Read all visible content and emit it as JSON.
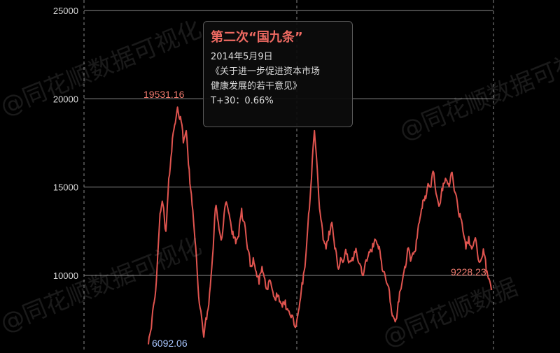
{
  "colors": {
    "line": "#e0544f",
    "grid": "#8a8a8a",
    "peak_label": "#f07a6e",
    "trough_label": "#a9c6ff"
  },
  "watermarks": [
    "@同花顺数据可视化",
    "@同花顺数据可视化",
    "@同花顺数据可视化",
    "@同花顺数据"
  ],
  "tooltip": {
    "title": "第二次“国九条”",
    "date": "2014年5月9日",
    "doc_line1": "《关于进一步促进资本市场",
    "doc_line2": "健康发展的若干意见》",
    "t30": "T+30：0.66%"
  },
  "chart_data": {
    "type": "line",
    "title": "",
    "xlabel": "",
    "ylabel": "",
    "ylim": [
      5800,
      25600
    ],
    "yticks": [
      10000,
      15000,
      20000,
      25000
    ],
    "grid": true,
    "annotations": [
      {
        "text": "19531.16",
        "kind": "peak"
      },
      {
        "text": "6092.06",
        "kind": "trough"
      },
      {
        "text": "9228.23",
        "kind": "last"
      }
    ],
    "series": [
      {
        "values": [
          6092,
          7000,
          8500,
          10500,
          13500,
          14000,
          12500,
          15500,
          17000,
          18500,
          19531,
          19000,
          17500,
          18200,
          16000,
          14000,
          12000,
          9500,
          8000,
          6500,
          7500,
          9000,
          11000,
          13800,
          13000,
          12000,
          13500,
          14000,
          13200,
          12500,
          11800,
          12200,
          13800,
          13000,
          11500,
          10500,
          11000,
          10200,
          9500,
          10500,
          9800,
          9200,
          9600,
          8800,
          9000,
          8500,
          8200,
          8600,
          8000,
          7600,
          7200,
          7500,
          8500,
          9500,
          11000,
          13500,
          15500,
          18200,
          16000,
          13500,
          12000,
          11500,
          12500,
          13000,
          11500,
          10500,
          11000,
          10800,
          11200,
          10800,
          11000,
          11300,
          10800,
          10500,
          10200,
          10800,
          11300,
          11800,
          12000,
          11500,
          10800,
          10200,
          9500,
          8500,
          7700,
          7500,
          8500,
          9500,
          10500,
          11500,
          10800,
          11200,
          12000,
          13000,
          13800,
          14500,
          15200,
          15000,
          15800,
          14500,
          14000,
          14800,
          15500,
          15200,
          15800,
          14800,
          14200,
          13500,
          12500,
          11500,
          12200,
          11500,
          12000,
          11200,
          10800,
          11500,
          10200,
          9800,
          9228
        ]
      }
    ]
  }
}
